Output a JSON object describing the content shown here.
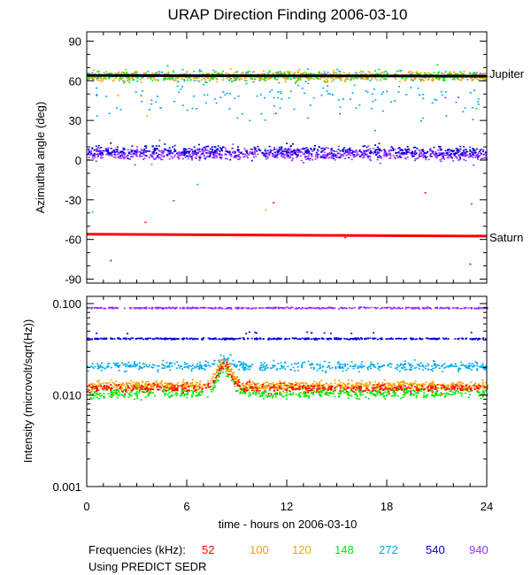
{
  "chart_data": {
    "title": "URAP Direction Finding  2006-03-10",
    "x": {
      "label": "time - hours on 2006-03-10",
      "range": [
        0,
        24
      ],
      "ticks": [
        0,
        6,
        12,
        18,
        24
      ],
      "tick_labels": [
        "0",
        "6",
        "12",
        "18",
        "24"
      ]
    },
    "top": {
      "type": "scatter",
      "ylabel": "Azimuthal angle (deg)",
      "ylim": [
        -93,
        97
      ],
      "yticks": [
        90,
        60,
        30,
        0,
        -30,
        -60,
        -90
      ],
      "ytick_labels": [
        "90",
        "60",
        "30",
        "0",
        "-30",
        "-60",
        "-90"
      ],
      "reference_lines": [
        {
          "name": "Jupiter",
          "value_start": 64,
          "value_end": 63.5,
          "color": "#000000"
        },
        {
          "name": "Saturn",
          "value_start": -56,
          "value_end": -57.5,
          "color": "#ff0000"
        }
      ],
      "series": [
        {
          "freq": "940",
          "color": "#9933ff",
          "typical_angle": 5,
          "spread": 6
        },
        {
          "freq": "540",
          "color": "#0000dd",
          "typical_angle": 7,
          "spread": 6
        },
        {
          "freq": "272",
          "color": "#00aaee",
          "typical_angle": 55,
          "spread": 15
        },
        {
          "freq": "148",
          "color": "#00ee00",
          "typical_angle": 64,
          "spread": 5
        },
        {
          "freq": "120",
          "color": "#eeaa00",
          "typical_angle": 64,
          "spread": 5
        },
        {
          "freq": "100",
          "color": "#ff9900",
          "typical_angle": 64,
          "spread": 5
        },
        {
          "freq": "52",
          "color": "#ff0000",
          "typical_angle": -57,
          "spread": 1
        }
      ]
    },
    "bottom": {
      "type": "scatter",
      "ylabel": "Intensity (microvolt/sqrt(Hz))",
      "yscale": "log",
      "ylim": [
        0.001,
        0.12
      ],
      "yticks": [
        0.1,
        0.01,
        0.001
      ],
      "ytick_labels": [
        "0.100",
        "0.010",
        "0.001"
      ],
      "series": [
        {
          "freq": "940",
          "color": "#9933ff",
          "typical_value": 0.091
        },
        {
          "freq": "540",
          "color": "#0000dd",
          "typical_value": 0.042
        },
        {
          "freq": "272",
          "color": "#00aaee",
          "typical_value": 0.021
        },
        {
          "freq": "100",
          "color": "#ff9900",
          "typical_value": 0.013
        },
        {
          "freq": "120",
          "color": "#eeaa00",
          "typical_value": 0.0125
        },
        {
          "freq": "52",
          "color": "#ff0000",
          "typical_value": 0.012
        },
        {
          "freq": "148",
          "color": "#00ee00",
          "typical_value": 0.0105
        }
      ]
    },
    "legend": {
      "label": "Frequencies (kHz):",
      "items": [
        {
          "label": "52",
          "color": "#ff0000"
        },
        {
          "label": "100",
          "color": "#ff9900"
        },
        {
          "label": "120",
          "color": "#eeaa00"
        },
        {
          "label": "148",
          "color": "#00ee00"
        },
        {
          "label": "272",
          "color": "#00aaee"
        },
        {
          "label": "540",
          "color": "#0000dd"
        },
        {
          "label": "940",
          "color": "#9933ff"
        }
      ]
    },
    "note": "Using PREDICT SEDR"
  }
}
